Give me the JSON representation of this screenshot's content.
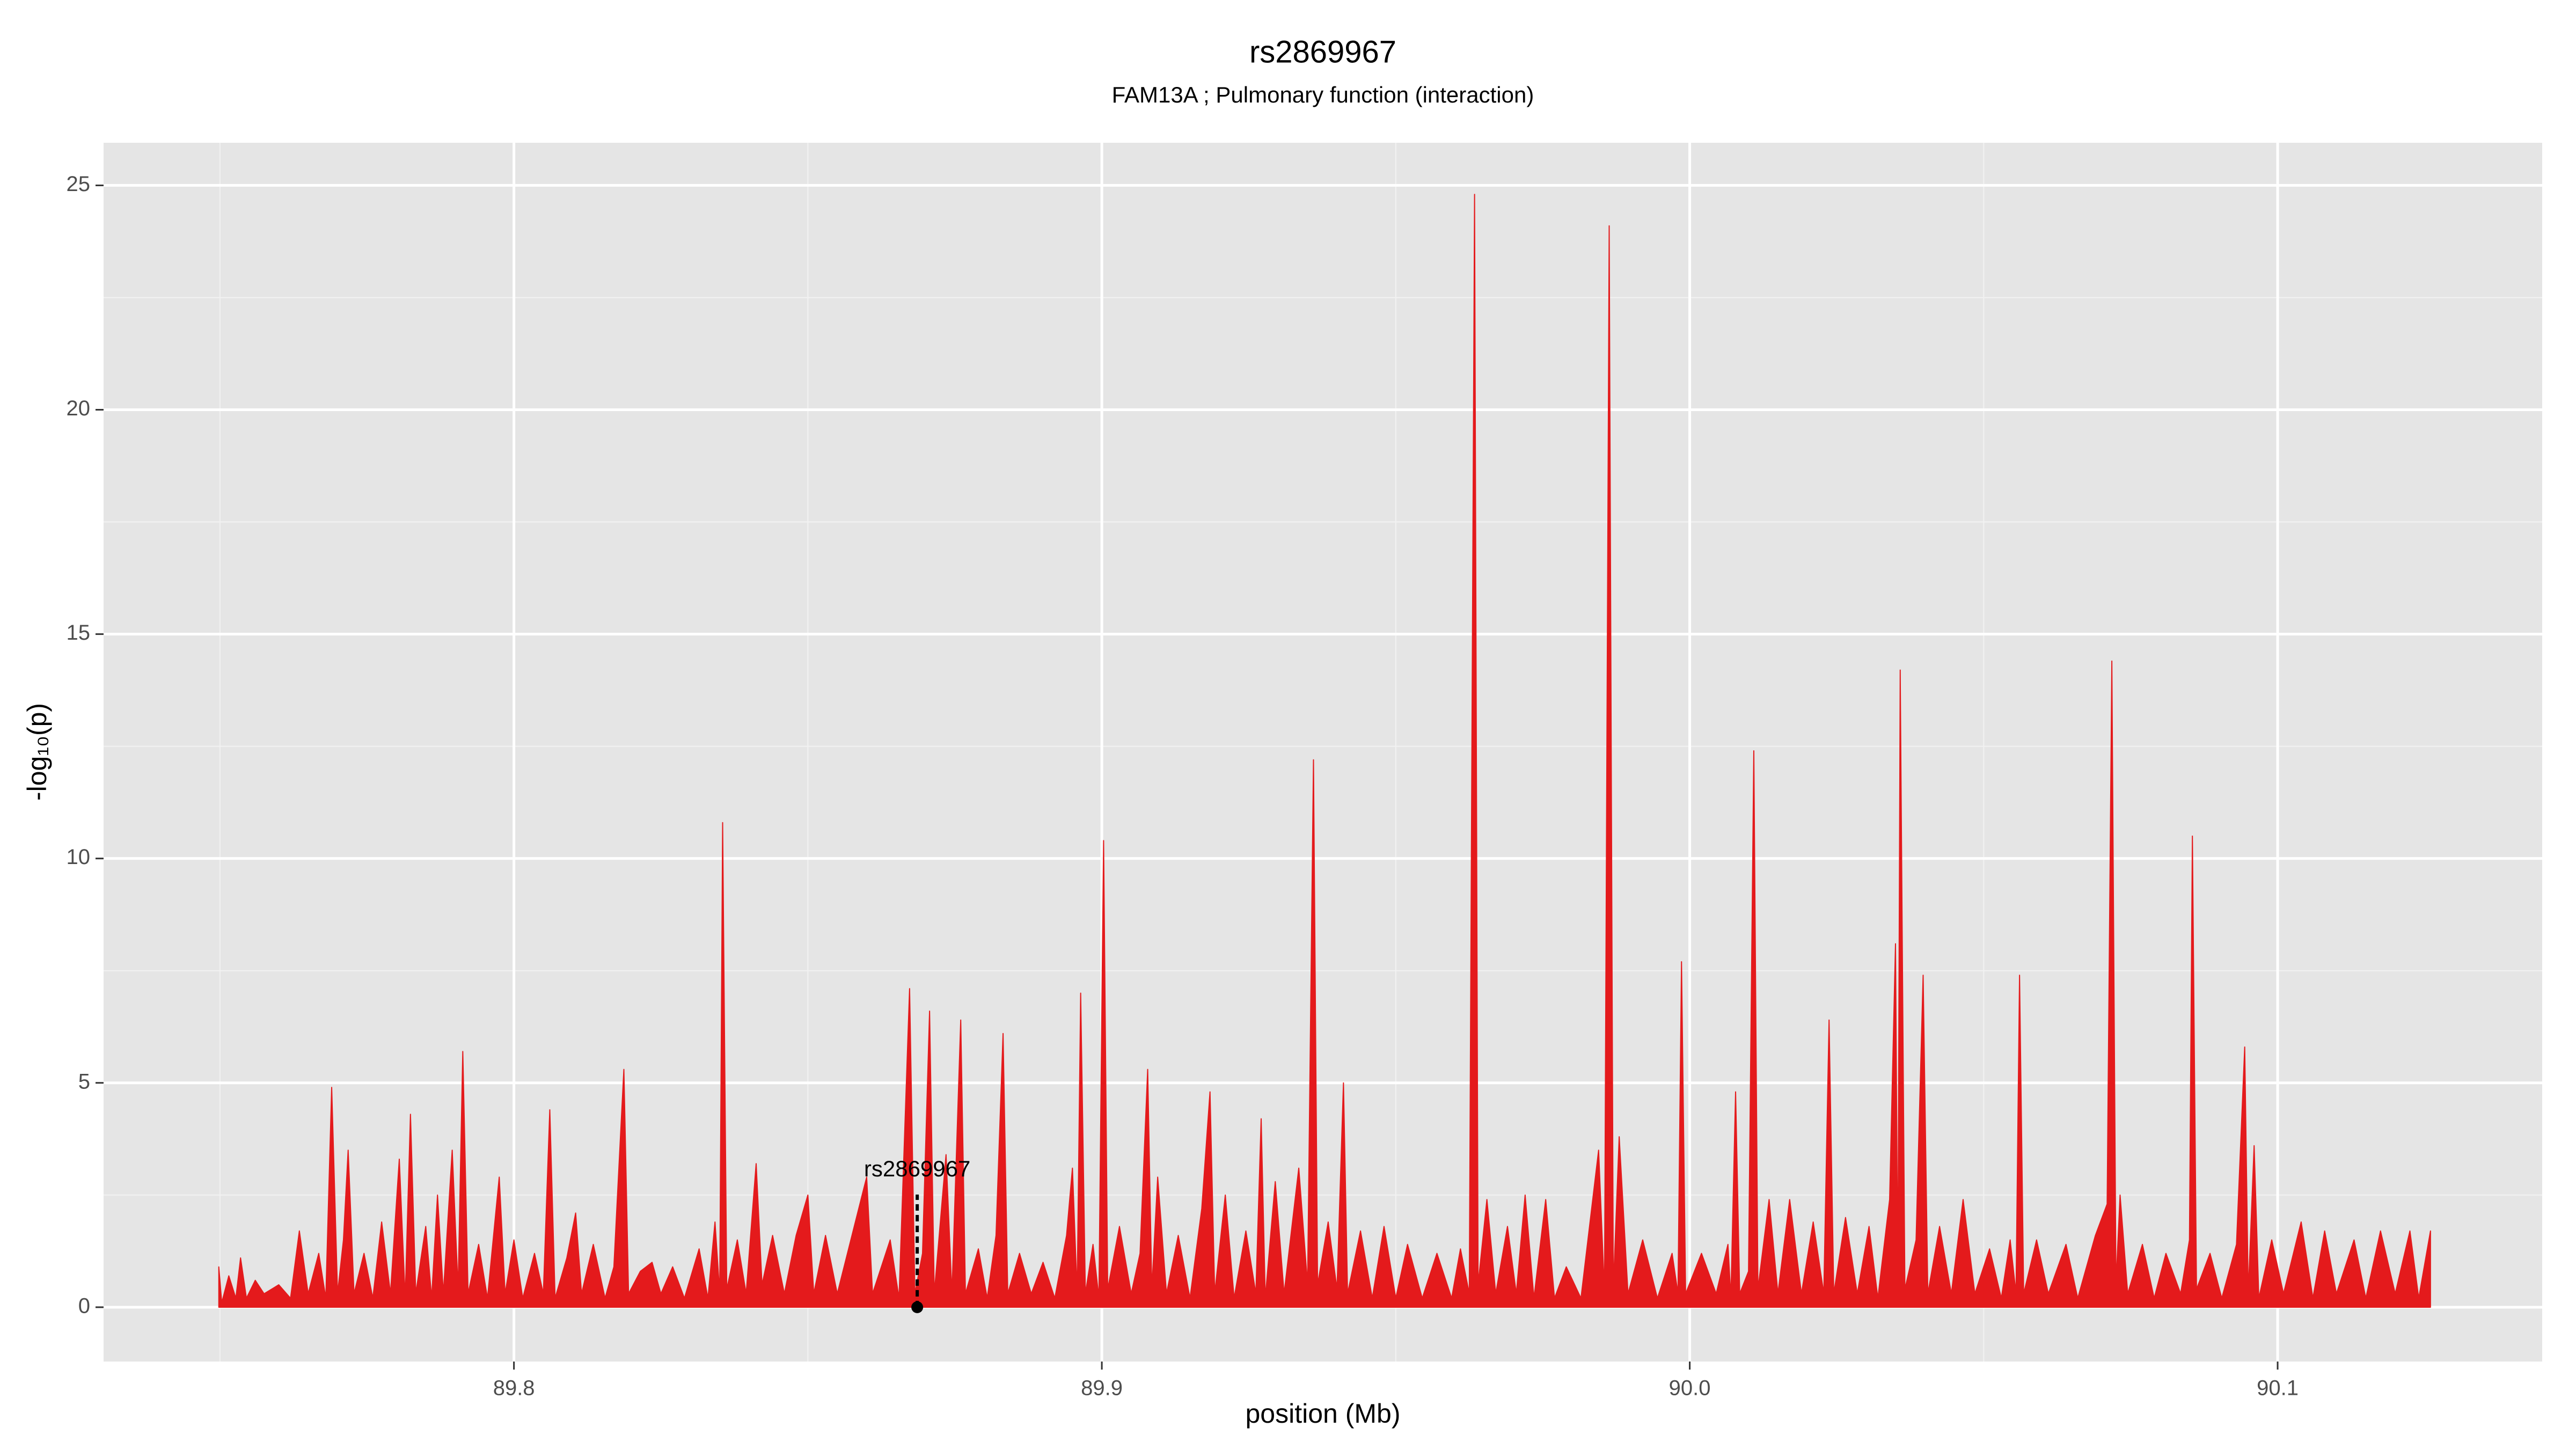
{
  "chart_data": {
    "type": "area",
    "title": "rs2869967",
    "subtitle": "FAM13A ; Pulmonary function (interaction)",
    "xlabel": "position (Mb)",
    "ylabel": "-log₁₀(p)",
    "xlim": [
      89.7302,
      90.145
    ],
    "ylim": [
      -1.21,
      25.95
    ],
    "xticks": [
      89.8,
      89.9,
      {
        "value": 90,
        "label": "90.0"
      },
      90.1
    ],
    "yticks": [
      0,
      5,
      10,
      15,
      20,
      25
    ],
    "xminor": [
      89.75,
      89.85,
      89.95,
      90.05
    ],
    "yminor": [
      2.5,
      7.5,
      12.5,
      17.5,
      22.5
    ],
    "grid": true,
    "annotation": {
      "text": "rs2869967",
      "x": 89.8686,
      "y": 0
    },
    "x": [
      89.7498,
      89.7503,
      89.7515,
      89.7527,
      89.7535,
      89.7545,
      89.756,
      89.7575,
      89.76,
      89.762,
      89.7635,
      89.765,
      89.7668,
      89.768,
      89.769,
      89.77,
      89.771,
      89.7718,
      89.7728,
      89.7745,
      89.776,
      89.7775,
      89.779,
      89.7805,
      89.7815,
      89.7824,
      89.7833,
      89.785,
      89.786,
      89.787,
      89.788,
      89.7895,
      89.7905,
      89.7913,
      89.7922,
      89.794,
      89.7955,
      89.7975,
      89.7985,
      89.8,
      89.8015,
      89.8035,
      89.805,
      89.8061,
      89.807,
      89.809,
      89.8105,
      89.8115,
      89.8135,
      89.8155,
      89.817,
      89.8187,
      89.8195,
      89.8215,
      89.8235,
      89.825,
      89.827,
      89.829,
      89.8315,
      89.833,
      89.8342,
      89.835,
      89.8355,
      89.8362,
      89.838,
      89.8395,
      89.8412,
      89.8422,
      89.844,
      89.846,
      89.848,
      89.85,
      89.851,
      89.853,
      89.855,
      89.86,
      89.861,
      89.864,
      89.8655,
      89.8673,
      89.8682,
      89.8695,
      89.8707,
      89.8715,
      89.8735,
      89.8745,
      89.876,
      89.8768,
      89.879,
      89.8805,
      89.882,
      89.8832,
      89.884,
      89.886,
      89.888,
      89.89,
      89.892,
      89.894,
      89.895,
      89.8958,
      89.8964,
      89.8972,
      89.8985,
      89.8995,
      89.9003,
      89.901,
      89.903,
      89.905,
      89.9065,
      89.9078,
      89.9085,
      89.9095,
      89.911,
      89.913,
      89.915,
      89.917,
      89.9184,
      89.9192,
      89.921,
      89.9225,
      89.9245,
      89.9262,
      89.9271,
      89.9278,
      89.9295,
      89.931,
      89.9335,
      89.935,
      89.936,
      89.9367,
      89.9385,
      89.94,
      89.9411,
      89.9418,
      89.944,
      89.946,
      89.948,
      89.95,
      89.952,
      89.9545,
      89.957,
      89.9595,
      89.961,
      89.9625,
      89.9634,
      89.964,
      89.9655,
      89.967,
      89.969,
      89.9705,
      89.972,
      89.9735,
      89.9755,
      89.977,
      89.979,
      89.9815,
      89.9845,
      89.9855,
      89.9863,
      89.987,
      89.988,
      89.9895,
      89.992,
      89.9945,
      89.997,
      89.998,
      89.9986,
      89.9993,
      90.002,
      90.0045,
      90.0065,
      90.007,
      90.0078,
      90.0085,
      90.01,
      90.0109,
      90.0116,
      90.0135,
      90.015,
      90.017,
      90.019,
      90.021,
      90.0228,
      90.0237,
      90.0245,
      90.0265,
      90.0285,
      90.0305,
      90.032,
      90.034,
      90.035,
      90.0354,
      90.0358,
      90.0366,
      90.0385,
      90.0397,
      90.0405,
      90.0425,
      90.0445,
      90.0465,
      90.0485,
      90.051,
      90.053,
      90.0545,
      90.0555,
      90.0561,
      90.0568,
      90.059,
      90.061,
      90.064,
      90.066,
      90.069,
      90.071,
      90.0718,
      90.0725,
      90.0732,
      90.0745,
      90.077,
      90.079,
      90.081,
      90.0835,
      90.085,
      90.0855,
      90.0862,
      90.0885,
      90.0905,
      90.093,
      90.0944,
      90.095,
      90.096,
      90.0968,
      90.099,
      90.101,
      90.104,
      90.106,
      90.108,
      90.11,
      90.113,
      90.115,
      90.1175,
      90.12,
      90.1225,
      90.124,
      90.126
    ],
    "series": [
      {
        "color": "#e41a1c",
        "values": [
          0.9,
          0.1,
          0.7,
          0.2,
          1.1,
          0.2,
          0.6,
          0.3,
          0.5,
          0.2,
          1.7,
          0.3,
          1.2,
          0.2,
          4.9,
          0.3,
          1.5,
          3.5,
          0.3,
          1.2,
          0.2,
          1.9,
          0.3,
          3.3,
          0.2,
          4.3,
          0.3,
          1.8,
          0.2,
          2.5,
          0.3,
          3.5,
          0.4,
          5.7,
          0.3,
          1.4,
          0.2,
          2.9,
          0.3,
          1.5,
          0.2,
          1.2,
          0.3,
          4.4,
          0.2,
          1.1,
          2.1,
          0.3,
          1.4,
          0.2,
          0.9,
          5.3,
          0.3,
          0.8,
          1.0,
          0.3,
          0.9,
          0.2,
          1.3,
          0.2,
          1.9,
          0.3,
          10.8,
          0.4,
          1.5,
          0.3,
          3.2,
          0.5,
          1.6,
          0.3,
          1.6,
          2.5,
          0.3,
          1.6,
          0.3,
          2.9,
          0.3,
          1.5,
          0.2,
          7.1,
          0.3,
          1.2,
          6.6,
          0.3,
          3.4,
          0.3,
          6.4,
          0.3,
          1.3,
          0.2,
          1.6,
          6.1,
          0.3,
          1.2,
          0.3,
          1.0,
          0.2,
          1.6,
          3.1,
          0.3,
          7.0,
          0.3,
          1.4,
          0.2,
          10.4,
          0.4,
          1.8,
          0.3,
          1.2,
          5.3,
          0.4,
          2.9,
          0.3,
          1.6,
          0.2,
          2.2,
          4.8,
          0.3,
          2.5,
          0.2,
          1.7,
          0.3,
          4.2,
          0.2,
          2.8,
          0.3,
          3.1,
          0.5,
          12.2,
          0.5,
          1.9,
          0.4,
          5.0,
          0.3,
          1.7,
          0.2,
          1.8,
          0.2,
          1.4,
          0.2,
          1.2,
          0.2,
          1.3,
          0.3,
          24.8,
          0.5,
          2.4,
          0.3,
          1.8,
          0.3,
          2.5,
          0.2,
          2.4,
          0.2,
          0.9,
          0.2,
          3.5,
          0.3,
          24.1,
          0.4,
          3.8,
          0.3,
          1.5,
          0.2,
          1.2,
          0.3,
          7.7,
          0.3,
          1.2,
          0.3,
          1.4,
          0.2,
          4.8,
          0.3,
          0.8,
          12.4,
          0.4,
          2.4,
          0.3,
          2.4,
          0.3,
          1.9,
          0.3,
          6.4,
          0.3,
          2.0,
          0.3,
          1.8,
          0.2,
          2.4,
          8.1,
          0.4,
          14.2,
          0.4,
          1.5,
          7.4,
          0.3,
          1.8,
          0.3,
          2.4,
          0.3,
          1.3,
          0.2,
          1.5,
          0.3,
          7.4,
          0.3,
          1.5,
          0.3,
          1.4,
          0.2,
          1.6,
          2.3,
          14.4,
          0.5,
          2.5,
          0.3,
          1.4,
          0.2,
          1.2,
          0.3,
          1.5,
          10.5,
          0.4,
          1.2,
          0.2,
          1.4,
          5.8,
          0.3,
          3.6,
          0.2,
          1.5,
          0.3,
          1.9,
          0.2,
          1.7,
          0.3,
          1.5,
          0.2,
          1.7,
          0.3,
          1.7,
          0.2,
          1.7
        ]
      }
    ]
  }
}
